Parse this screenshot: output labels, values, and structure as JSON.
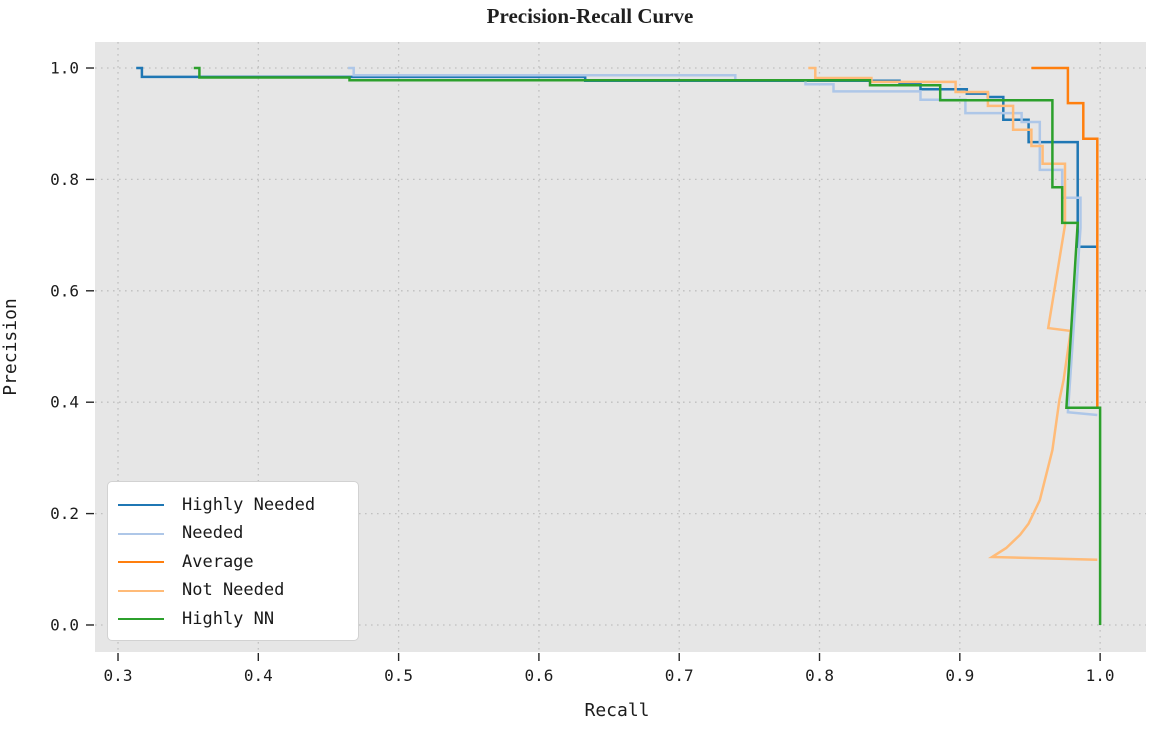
{
  "title": "Precision-Recall Curve",
  "axes": {
    "xlabel": "Recall",
    "ylabel": "Precision"
  },
  "legend": {
    "position": "lower left",
    "items": [
      {
        "label": "Highly Needed",
        "color": "#1f77b4"
      },
      {
        "label": "Needed",
        "color": "#aec7e8"
      },
      {
        "label": "Average",
        "color": "#ff7f0e"
      },
      {
        "label": "Not Needed",
        "color": "#ffbb78"
      },
      {
        "label": "Highly NN",
        "color": "#2ca02c"
      }
    ]
  },
  "style": {
    "plot_bg": "#e6e6e6",
    "grid_color": "#c0c0c0",
    "grid_style": "dotted",
    "tick_color": "#262626",
    "text_color": "#1c1c1c",
    "line_width": 2.5
  },
  "chart_data": {
    "type": "line",
    "subtype": "step-precision-recall",
    "title": "Precision-Recall Curve",
    "xlabel": "Recall",
    "ylabel": "Precision",
    "xlim": [
      0.2836,
      1.0327
    ],
    "ylim": [
      -0.0485,
      1.0467
    ],
    "grid": "dotted",
    "legend_position": "lower left",
    "x_ticks": {
      "values": [
        0.3,
        0.4,
        0.5,
        0.6,
        0.7,
        0.8,
        0.9,
        1.0
      ],
      "labels": [
        "0.3",
        "0.4",
        "0.5",
        "0.6",
        "0.7",
        "0.8",
        "0.9",
        "1.0"
      ]
    },
    "y_ticks": {
      "values": [
        0.0,
        0.2,
        0.4,
        0.6,
        0.8,
        1.0
      ],
      "labels": [
        "0.0",
        "0.2",
        "0.4",
        "0.6",
        "0.8",
        "1.0"
      ]
    },
    "series": [
      {
        "name": "Highly Needed",
        "color": "#1f77b4",
        "points": [
          [
            0.313,
            1.0
          ],
          [
            0.317,
            1.0
          ],
          [
            0.317,
            0.984
          ],
          [
            0.633,
            0.984
          ],
          [
            0.633,
            0.977
          ],
          [
            0.857,
            0.977
          ],
          [
            0.857,
            0.973
          ],
          [
            0.872,
            0.973
          ],
          [
            0.872,
            0.962
          ],
          [
            0.905,
            0.962
          ],
          [
            0.905,
            0.954
          ],
          [
            0.92,
            0.954
          ],
          [
            0.92,
            0.948
          ],
          [
            0.931,
            0.948
          ],
          [
            0.931,
            0.907
          ],
          [
            0.949,
            0.907
          ],
          [
            0.949,
            0.867
          ],
          [
            0.984,
            0.867
          ],
          [
            0.984,
            0.679
          ],
          [
            0.998,
            0.679
          ]
        ]
      },
      {
        "name": "Needed",
        "color": "#aec7e8",
        "points": [
          [
            0.464,
            1.0
          ],
          [
            0.468,
            1.0
          ],
          [
            0.468,
            0.987
          ],
          [
            0.74,
            0.987
          ],
          [
            0.74,
            0.978
          ],
          [
            0.79,
            0.978
          ],
          [
            0.79,
            0.971
          ],
          [
            0.81,
            0.971
          ],
          [
            0.81,
            0.958
          ],
          [
            0.872,
            0.958
          ],
          [
            0.872,
            0.943
          ],
          [
            0.904,
            0.943
          ],
          [
            0.904,
            0.919
          ],
          [
            0.944,
            0.919
          ],
          [
            0.944,
            0.903
          ],
          [
            0.957,
            0.903
          ],
          [
            0.957,
            0.817
          ],
          [
            0.973,
            0.817
          ],
          [
            0.973,
            0.767
          ],
          [
            0.986,
            0.767
          ],
          [
            0.986,
            0.713
          ],
          [
            0.977,
            0.382
          ],
          [
            0.998,
            0.377
          ]
        ]
      },
      {
        "name": "Average",
        "color": "#ff7f0e",
        "points": [
          [
            0.951,
            1.0
          ],
          [
            0.977,
            1.0
          ],
          [
            0.977,
            0.937
          ],
          [
            0.988,
            0.937
          ],
          [
            0.988,
            0.873
          ],
          [
            0.998,
            0.873
          ],
          [
            0.998,
            0.39
          ]
        ]
      },
      {
        "name": "Not Needed",
        "color": "#ffbb78",
        "points": [
          [
            0.792,
            1.0
          ],
          [
            0.797,
            1.0
          ],
          [
            0.797,
            0.982
          ],
          [
            0.837,
            0.982
          ],
          [
            0.837,
            0.975
          ],
          [
            0.897,
            0.975
          ],
          [
            0.897,
            0.957
          ],
          [
            0.92,
            0.957
          ],
          [
            0.92,
            0.932
          ],
          [
            0.938,
            0.932
          ],
          [
            0.938,
            0.889
          ],
          [
            0.951,
            0.889
          ],
          [
            0.951,
            0.86
          ],
          [
            0.959,
            0.86
          ],
          [
            0.959,
            0.828
          ],
          [
            0.975,
            0.828
          ],
          [
            0.975,
            0.718
          ],
          [
            0.963,
            0.533
          ],
          [
            0.979,
            0.528
          ],
          [
            0.974,
            0.44
          ],
          [
            0.971,
            0.404
          ],
          [
            0.966,
            0.314
          ],
          [
            0.957,
            0.224
          ],
          [
            0.949,
            0.182
          ],
          [
            0.943,
            0.162
          ],
          [
            0.933,
            0.138
          ],
          [
            0.923,
            0.122
          ],
          [
            0.998,
            0.117
          ]
        ]
      },
      {
        "name": "Highly NN",
        "color": "#2ca02c",
        "points": [
          [
            0.354,
            1.0
          ],
          [
            0.358,
            1.0
          ],
          [
            0.358,
            0.983
          ],
          [
            0.465,
            0.983
          ],
          [
            0.465,
            0.978
          ],
          [
            0.836,
            0.978
          ],
          [
            0.836,
            0.969
          ],
          [
            0.886,
            0.969
          ],
          [
            0.886,
            0.942
          ],
          [
            0.966,
            0.942
          ],
          [
            0.966,
            0.786
          ],
          [
            0.973,
            0.786
          ],
          [
            0.973,
            0.722
          ],
          [
            0.984,
            0.722
          ],
          [
            0.976,
            0.39
          ],
          [
            1.0,
            0.39
          ],
          [
            1.0,
            0.0
          ]
        ]
      }
    ]
  }
}
